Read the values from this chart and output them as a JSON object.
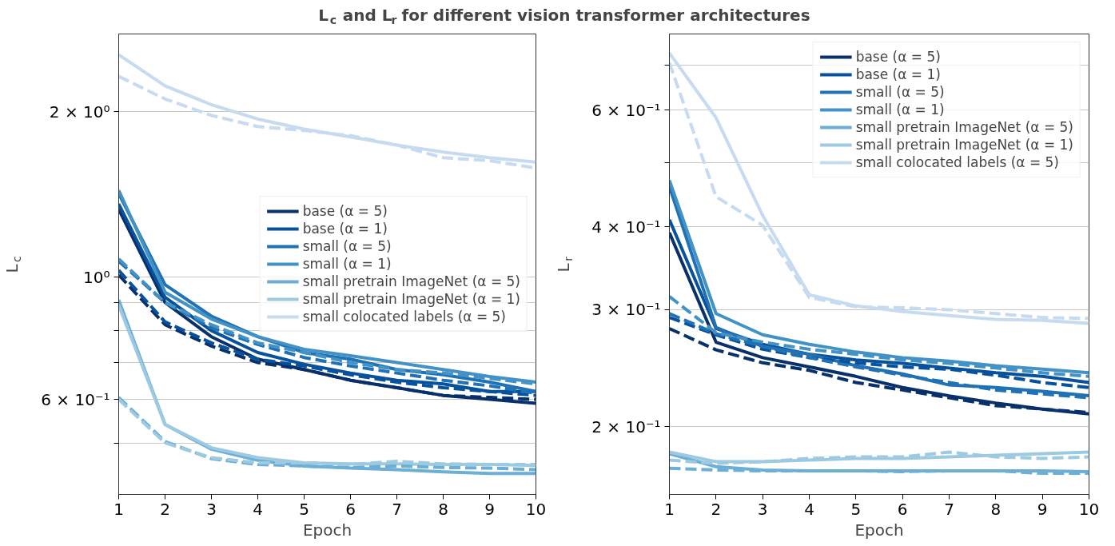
{
  "chart_data": [
    {
      "type": "line",
      "title": "L$_{c}$ and L$_{r}$ for different vision transformer architectures",
      "xlabel": "Epoch",
      "ylabel": "L$_{c}$",
      "log": "y",
      "grid": "y",
      "legend": "center right",
      "x": [
        1,
        2,
        3,
        4,
        5,
        6,
        7,
        8,
        9,
        10
      ],
      "xlim": [
        1,
        10
      ],
      "xticks": [
        1,
        2,
        3,
        4,
        5,
        6,
        7,
        8,
        9,
        10
      ],
      "ylim": [
        0.403,
        2.77
      ],
      "yticks": [
        {
          "value": 0.5,
          "label": null
        },
        {
          "value": 0.6,
          "label": "6 × 10⁻¹"
        },
        {
          "value": 0.7,
          "label": null
        },
        {
          "value": 0.8,
          "label": null
        },
        {
          "value": 0.9,
          "label": null
        },
        {
          "value": 1,
          "label": "10⁰"
        },
        {
          "value": 2,
          "label": "2 × 10⁰"
        }
      ],
      "series": [
        {
          "name": "base (α = 5)",
          "color": "#08306b",
          "line_style": "solid",
          "values": [
            1.33,
            0.9,
            0.78,
            0.71,
            0.68,
            0.65,
            0.63,
            0.61,
            0.6,
            0.59
          ]
        },
        {
          "name": "base (α = 1)",
          "color": "#08519c",
          "line_style": "solid",
          "values": [
            1.36,
            0.92,
            0.8,
            0.73,
            0.695,
            0.67,
            0.65,
            0.64,
            0.62,
            0.62
          ]
        },
        {
          "name": "small (α = 5)",
          "color": "#2171b5",
          "line_style": "solid",
          "values": [
            1.42,
            0.97,
            0.85,
            0.78,
            0.73,
            0.71,
            0.68,
            0.665,
            0.645,
            0.62
          ]
        },
        {
          "name": "small (α = 1)",
          "color": "#4292c6",
          "line_style": "solid",
          "values": [
            1.44,
            0.94,
            0.84,
            0.78,
            0.74,
            0.72,
            0.7,
            0.68,
            0.66,
            0.645
          ]
        },
        {
          "name": "small pretrain ImageNet (α = 5)",
          "color": "#6baed6",
          "line_style": "solid",
          "values": [
            0.91,
            0.54,
            0.487,
            0.465,
            0.454,
            0.45,
            0.447,
            0.443,
            0.44,
            0.44
          ]
        },
        {
          "name": "small pretrain ImageNet (α = 1)",
          "color": "#9ecae1",
          "line_style": "solid",
          "values": [
            0.89,
            0.54,
            0.49,
            0.47,
            0.46,
            0.458,
            0.458,
            0.457,
            0.457,
            0.455
          ]
        },
        {
          "name": "small colocated labels (α = 5)",
          "color": "#c6dbef",
          "line_style": "solid",
          "values": [
            2.54,
            2.23,
            2.06,
            1.94,
            1.86,
            1.8,
            1.74,
            1.69,
            1.65,
            1.62
          ]
        },
        {
          "color": "#08306b",
          "line_style": "dashed",
          "values": [
            1.01,
            0.82,
            0.75,
            0.7,
            0.68,
            0.65,
            0.63,
            0.61,
            0.605,
            0.6
          ]
        },
        {
          "color": "#08519c",
          "line_style": "dashed",
          "values": [
            1.03,
            0.83,
            0.76,
            0.71,
            0.69,
            0.665,
            0.645,
            0.63,
            0.62,
            0.61
          ]
        },
        {
          "color": "#2171b5",
          "line_style": "dashed",
          "values": [
            1.07,
            0.9,
            0.81,
            0.755,
            0.715,
            0.69,
            0.67,
            0.65,
            0.635,
            0.615
          ]
        },
        {
          "color": "#4292c6",
          "line_style": "dashed",
          "values": [
            1.08,
            0.9,
            0.82,
            0.76,
            0.73,
            0.7,
            0.68,
            0.67,
            0.655,
            0.64
          ]
        },
        {
          "color": "#6baed6",
          "line_style": "dashed",
          "values": [
            0.605,
            0.503,
            0.468,
            0.457,
            0.454,
            0.451,
            0.454,
            0.451,
            0.45,
            0.447
          ]
        },
        {
          "color": "#9ecae1",
          "line_style": "dashed",
          "values": [
            0.6,
            0.5,
            0.47,
            0.46,
            0.46,
            0.457,
            0.463,
            0.458,
            0.457,
            0.457
          ]
        },
        {
          "color": "#c6dbef",
          "line_style": "dashed",
          "values": [
            2.32,
            2.11,
            1.97,
            1.88,
            1.85,
            1.81,
            1.74,
            1.65,
            1.63,
            1.58
          ]
        }
      ]
    },
    {
      "type": "line",
      "xlabel": "Epoch",
      "ylabel": "L$_{r}$",
      "log": "y",
      "grid": "y",
      "legend": "top right",
      "x": [
        1,
        2,
        3,
        4,
        5,
        6,
        7,
        8,
        9,
        10
      ],
      "xlim": [
        1,
        10
      ],
      "xticks": [
        1,
        2,
        3,
        4,
        5,
        6,
        7,
        8,
        9,
        10
      ],
      "ylim": [
        0.158,
        0.781
      ],
      "yticks": [
        {
          "value": 0.2,
          "label": "2 × 10⁻¹"
        },
        {
          "value": 0.3,
          "label": "3 × 10⁻¹"
        },
        {
          "value": 0.4,
          "label": "4 × 10⁻¹"
        },
        {
          "value": 0.5,
          "label": null
        },
        {
          "value": 0.6,
          "label": "6 × 10⁻¹"
        },
        {
          "value": 0.7,
          "label": null
        }
      ],
      "series": [
        {
          "name": "base (α = 5)",
          "color": "#08306b",
          "line_style": "solid",
          "values": [
            0.392,
            0.268,
            0.254,
            0.246,
            0.238,
            0.229,
            0.2225,
            0.217,
            0.2125,
            0.209
          ]
        },
        {
          "name": "base (α = 1)",
          "color": "#08519c",
          "line_style": "solid",
          "values": [
            0.41,
            0.281,
            0.266,
            0.257,
            0.252,
            0.249,
            0.245,
            0.241,
            0.238,
            0.233
          ]
        },
        {
          "name": "small (α = 5)",
          "color": "#2171b5",
          "line_style": "solid",
          "values": [
            0.46,
            0.282,
            0.264,
            0.257,
            0.247,
            0.24,
            0.231,
            0.229,
            0.226,
            0.2225
          ]
        },
        {
          "name": "small (α = 1)",
          "color": "#4292c6",
          "line_style": "solid",
          "values": [
            0.47,
            0.296,
            0.275,
            0.266,
            0.259,
            0.254,
            0.251,
            0.247,
            0.244,
            0.241
          ]
        },
        {
          "name": "small pretrain ImageNet (α = 5)",
          "color": "#6baed6",
          "line_style": "solid",
          "values": [
            0.182,
            0.174,
            0.172,
            0.1715,
            0.1715,
            0.1715,
            0.1715,
            0.1715,
            0.1715,
            0.171
          ]
        },
        {
          "name": "small pretrain ImageNet (α = 1)",
          "color": "#9ecae1",
          "line_style": "solid",
          "values": [
            0.183,
            0.177,
            0.177,
            0.178,
            0.179,
            0.179,
            0.18,
            0.181,
            0.182,
            0.183
          ]
        },
        {
          "name": "small colocated labels (α = 5)",
          "color": "#c6dbef",
          "line_style": "solid",
          "values": [
            0.731,
            0.584,
            0.416,
            0.316,
            0.304,
            0.298,
            0.294,
            0.29,
            0.289,
            0.286
          ]
        },
        {
          "color": "#08306b",
          "line_style": "dashed",
          "values": [
            0.281,
            0.261,
            0.2495,
            0.243,
            0.233,
            0.227,
            0.221,
            0.215,
            0.2125,
            0.21
          ]
        },
        {
          "color": "#08519c",
          "line_style": "dashed",
          "values": [
            0.292,
            0.275,
            0.2615,
            0.254,
            0.2495,
            0.246,
            0.244,
            0.239,
            0.233,
            0.229
          ]
        },
        {
          "color": "#2171b5",
          "line_style": "dashed",
          "values": [
            0.296,
            0.276,
            0.264,
            0.254,
            0.246,
            0.239,
            0.233,
            0.227,
            0.224,
            0.221
          ]
        },
        {
          "color": "#4292c6",
          "line_style": "dashed",
          "values": [
            0.314,
            0.277,
            0.268,
            0.2615,
            0.257,
            0.252,
            0.249,
            0.245,
            0.241,
            0.238
          ]
        },
        {
          "color": "#6baed6",
          "line_style": "dashed",
          "values": [
            0.173,
            0.172,
            0.1715,
            0.1715,
            0.1715,
            0.171,
            0.1715,
            0.1715,
            0.17,
            0.17
          ]
        },
        {
          "color": "#9ecae1",
          "line_style": "dashed",
          "values": [
            0.178,
            0.176,
            0.177,
            0.179,
            0.18,
            0.18,
            0.183,
            0.18,
            0.179,
            0.18
          ]
        },
        {
          "color": "#c6dbef",
          "line_style": "dashed",
          "values": [
            0.707,
            0.444,
            0.402,
            0.313,
            0.303,
            0.302,
            0.3,
            0.296,
            0.292,
            0.291
          ]
        }
      ]
    }
  ]
}
